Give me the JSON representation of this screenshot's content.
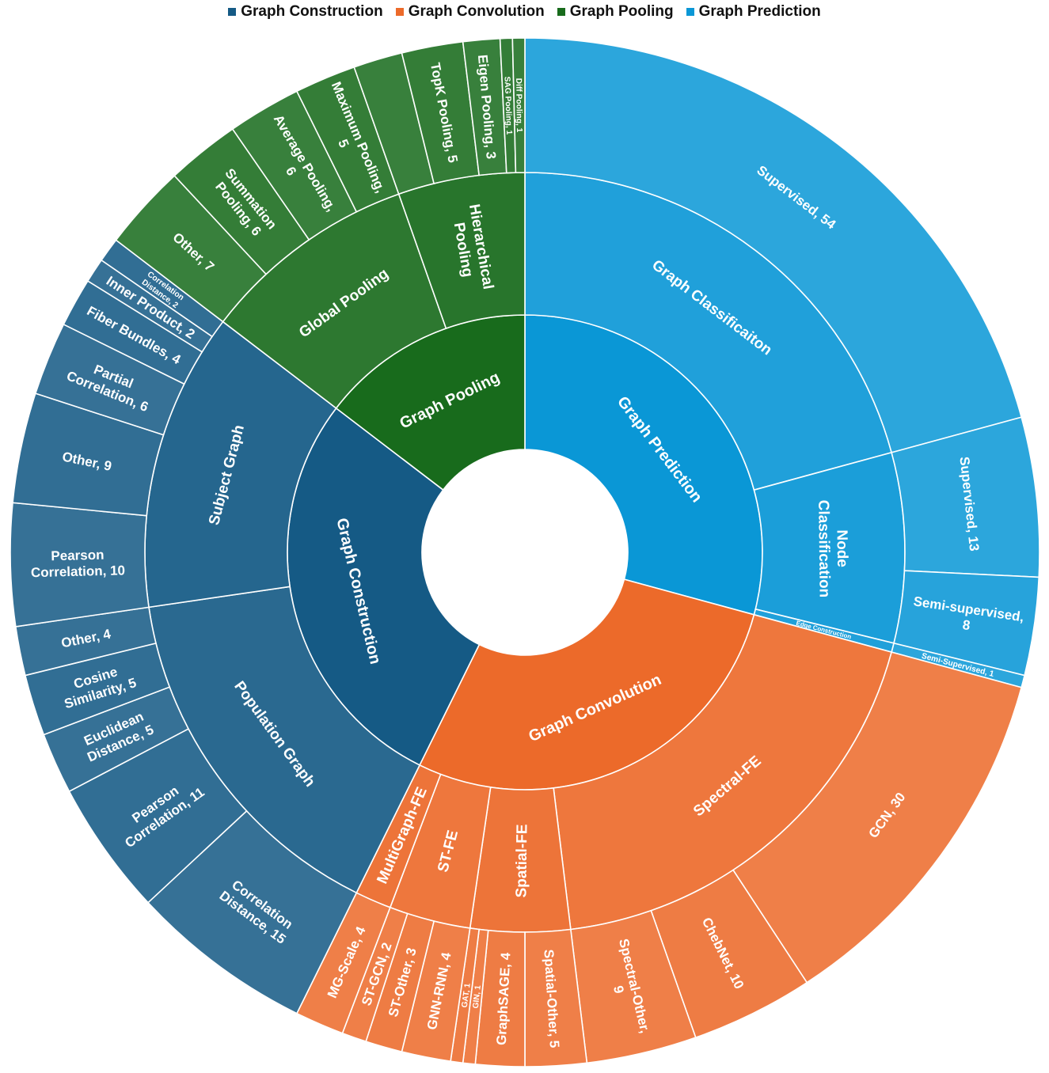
{
  "legend": {
    "items": [
      {
        "label": "Graph Construction",
        "color": "#155a85"
      },
      {
        "label": "Graph Convolution",
        "color": "#ec6a2a"
      },
      {
        "label": "Graph Pooling",
        "color": "#186b1c"
      },
      {
        "label": "Graph Prediction",
        "color": "#0a97d6"
      }
    ]
  },
  "chart_data": {
    "type": "sunburst",
    "title": "",
    "order": "clockwise-from-top",
    "children": [
      {
        "name": "Graph Prediction",
        "color": "#0a97d6",
        "children": [
          {
            "name": "Graph Classificaiton",
            "children": [
              {
                "name": "Supervised",
                "label": "Supervised, 54",
                "value": 54
              }
            ]
          },
          {
            "name": "Node Classification",
            "children": [
              {
                "name": "Supervised",
                "label": "Supervised, 13",
                "value": 13
              },
              {
                "name": "Semi-supervised",
                "label": "Semi-supervised, 8",
                "value": 8
              }
            ]
          },
          {
            "name": "Edge Construction",
            "children": [
              {
                "name": "Semi-Supervised",
                "label": "Semi-Supervised, 1",
                "value": 1
              }
            ]
          }
        ]
      },
      {
        "name": "Graph Convolution",
        "color": "#ec6a2a",
        "children": [
          {
            "name": "Spectral-FE",
            "children": [
              {
                "name": "GCN",
                "label": "GCN, 30",
                "value": 30
              },
              {
                "name": "ChebNet",
                "label": "ChebNet, 10",
                "value": 10
              },
              {
                "name": "Spectral-Other",
                "label": "Spectral-Other, 9",
                "value": 9
              }
            ]
          },
          {
            "name": "Spatial-FE",
            "children": [
              {
                "name": "Spatial-Other",
                "label": "Spatial-Other, 5",
                "value": 5
              },
              {
                "name": "GraphSAGE",
                "label": "GraphSAGE, 4",
                "value": 4
              },
              {
                "name": "GIN",
                "label": "GIN, 1",
                "value": 1
              },
              {
                "name": "GAT",
                "label": "GAT, 1",
                "value": 1
              }
            ]
          },
          {
            "name": "ST-FE",
            "children": [
              {
                "name": "GNN-RNN",
                "label": "GNN-RNN, 4",
                "value": 4
              },
              {
                "name": "ST-Other",
                "label": "ST-Other, 3",
                "value": 3
              },
              {
                "name": "ST-GCN",
                "label": "ST-GCN, 2",
                "value": 2
              }
            ]
          },
          {
            "name": "MultiGraph-FE",
            "children": [
              {
                "name": "MG-Scale",
                "label": "MG-Scale, 4",
                "value": 4
              }
            ]
          }
        ]
      },
      {
        "name": "Graph Construction",
        "color": "#155a85",
        "children": [
          {
            "name": "Population Graph",
            "children": [
              {
                "name": "Correlation Distance",
                "label": "Correlation Distance, 15",
                "value": 15
              },
              {
                "name": "Pearson Correlation",
                "label": "Pearson Correlation, 11",
                "value": 11
              },
              {
                "name": "Euclidean Distance",
                "label": "Euclidean Distance, 5",
                "value": 5
              },
              {
                "name": "Cosine Similarity",
                "label": "Cosine Similarity, 5",
                "value": 5
              },
              {
                "name": "Other",
                "label": "Other, 4",
                "value": 4
              }
            ]
          },
          {
            "name": "Subject Graph",
            "children": [
              {
                "name": "Pearson Correlation",
                "label": "Pearson Correlation, 10",
                "value": 10
              },
              {
                "name": "Other",
                "label": "Other, 9",
                "value": 9
              },
              {
                "name": "Partial Correlation",
                "label": "Partial Correlation, 6",
                "value": 6
              },
              {
                "name": "Fiber Bundles",
                "label": "Fiber Bundles, 4",
                "value": 4
              },
              {
                "name": "Inner Product",
                "label": "Inner Product, 2",
                "value": 2
              },
              {
                "name": "Correlation Distance",
                "label": "Correlation Distance, 2",
                "value": 2
              }
            ]
          }
        ]
      },
      {
        "name": "Graph Pooling",
        "color": "#186b1c",
        "children": [
          {
            "name": "Global Pooling",
            "children": [
              {
                "name": "Other",
                "label": "Other, 7",
                "value": 7
              },
              {
                "name": "Summation Pooling",
                "label": "Summation Pooling, 6",
                "value": 6
              },
              {
                "name": "Average Pooling",
                "label": "Average Pooling, 6",
                "value": 6
              },
              {
                "name": "Maximum Pooling",
                "label": "Maximum Pooling, 5",
                "value": 5
              }
            ]
          },
          {
            "name": "Hierarchical Pooling",
            "children": [
              {
                "name": "Other",
                "label": "",
                "value": 4
              },
              {
                "name": "TopK Pooling",
                "label": "TopK Pooling, 5",
                "value": 5
              },
              {
                "name": "Eigen Pooling",
                "label": "Eigen Pooling, 3",
                "value": 3
              },
              {
                "name": "SAG Pooling",
                "label": "SAG Pooling, 1",
                "value": 1
              },
              {
                "name": "Diff Pooling",
                "label": "Diff Pooling, 1",
                "value": 1
              }
            ]
          }
        ]
      }
    ]
  }
}
